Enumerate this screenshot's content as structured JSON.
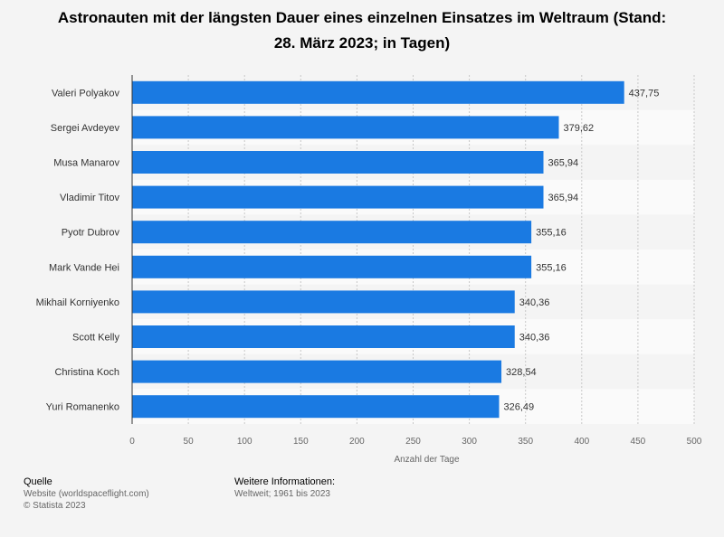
{
  "chart_data": {
    "type": "bar",
    "orientation": "horizontal",
    "title": "Astronauten mit der längsten Dauer eines einzelnen Einsatzes im Weltraum (Stand: 28. März 2023; in Tagen)",
    "title_lines": [
      "Astronauten mit der längsten Dauer eines einzelnen Einsatzes im Weltraum (Stand:",
      "28. März 2023; in Tagen)"
    ],
    "categories": [
      "Valeri Polyakov",
      "Sergei Avdeyev",
      "Musa Manarov",
      "Vladimir Titov",
      "Pyotr Dubrov",
      "Mark Vande Hei",
      "Mikhail Korniyenko",
      "Scott Kelly",
      "Christina Koch",
      "Yuri Romanenko"
    ],
    "values": [
      437.75,
      379.62,
      365.94,
      365.94,
      355.16,
      355.16,
      340.36,
      340.36,
      328.54,
      326.49
    ],
    "value_labels": [
      "437,75",
      "379,62",
      "365,94",
      "365,94",
      "355,16",
      "355,16",
      "340,36",
      "340,36",
      "328,54",
      "326,49"
    ],
    "xlabel": "Anzahl der Tage",
    "ylabel": "",
    "xlim": [
      0,
      500
    ],
    "xticks": [
      0,
      50,
      100,
      150,
      200,
      250,
      300,
      350,
      400,
      450,
      500
    ],
    "bar_color": "#1a7ae2",
    "grid": true
  },
  "footer": {
    "source_header": "Quelle",
    "source_line1": "Website (worldspaceflight.com)",
    "source_line2": "© Statista 2023",
    "info_header": "Weitere Informationen:",
    "info_line1": "Weltweit; 1961 bis 2023"
  }
}
